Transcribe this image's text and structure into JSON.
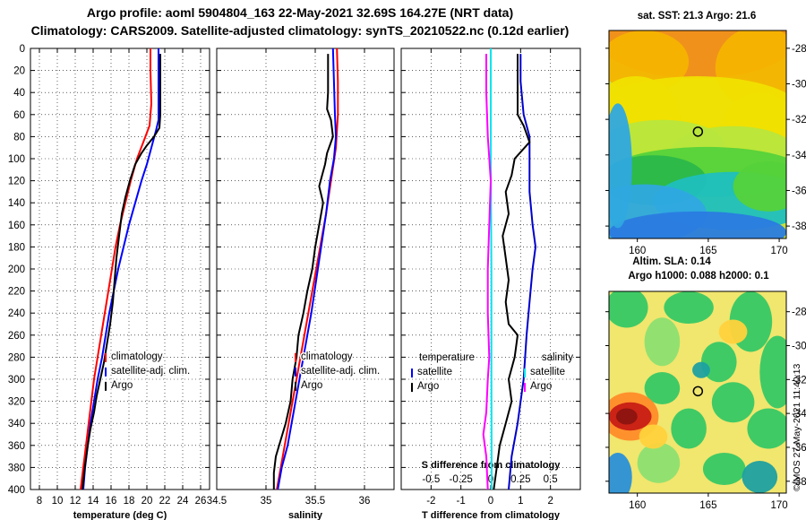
{
  "header": {
    "line1": "Argo profile: aoml 5904804_163 22-May-2021 32.69S 164.27E (NRT data)",
    "line2": "Climatology: CARS2009. Satellite-adjusted climatology: synTS_20210522.nc (0.12d earlier)"
  },
  "depth_ticks": [
    0,
    20,
    40,
    60,
    80,
    100,
    120,
    140,
    160,
    180,
    200,
    220,
    240,
    260,
    280,
    300,
    320,
    340,
    360,
    380,
    400
  ],
  "colors": {
    "climatology": "#ff0000",
    "satellite": "#0000ff",
    "argo": "#000000",
    "t_satellite": "#00e5ee",
    "s_satellite": "#0000cc",
    "s_argo": "#ff00ff"
  },
  "chart_data": [
    {
      "id": "temperature",
      "type": "line",
      "xlabel": "temperature (deg C)",
      "ylabel": "depth",
      "xlim": [
        7,
        27
      ],
      "ylim": [
        400,
        0
      ],
      "xticks": [
        8,
        10,
        12,
        14,
        16,
        18,
        20,
        22,
        24,
        26
      ],
      "legend": [
        "climatology",
        "satellite-adj. clim.",
        "Argo"
      ],
      "series": [
        {
          "name": "climatology",
          "color": "#ff0000",
          "points": [
            [
              20.4,
              0
            ],
            [
              20.4,
              20
            ],
            [
              20.5,
              50
            ],
            [
              20.3,
              70
            ],
            [
              19.6,
              85
            ],
            [
              18.9,
              100
            ],
            [
              18.2,
              120
            ],
            [
              17.6,
              140
            ],
            [
              17.0,
              160
            ],
            [
              16.5,
              180
            ],
            [
              16.1,
              200
            ],
            [
              15.7,
              220
            ],
            [
              15.3,
              240
            ],
            [
              14.9,
              260
            ],
            [
              14.5,
              280
            ],
            [
              14.1,
              300
            ],
            [
              13.8,
              320
            ],
            [
              13.5,
              340
            ],
            [
              13.2,
              360
            ],
            [
              12.9,
              380
            ],
            [
              12.6,
              400
            ]
          ]
        },
        {
          "name": "satellite-adj. clim.",
          "color": "#0000ff",
          "points": [
            [
              21.3,
              0
            ],
            [
              21.3,
              20
            ],
            [
              21.3,
              50
            ],
            [
              21.3,
              65
            ],
            [
              21.0,
              75
            ],
            [
              20.5,
              90
            ],
            [
              20.0,
              105
            ],
            [
              19.4,
              120
            ],
            [
              18.7,
              140
            ],
            [
              18.0,
              160
            ],
            [
              17.4,
              180
            ],
            [
              16.8,
              200
            ],
            [
              16.3,
              220
            ],
            [
              15.8,
              240
            ],
            [
              15.4,
              260
            ],
            [
              15.0,
              280
            ],
            [
              14.5,
              300
            ],
            [
              14.1,
              320
            ],
            [
              13.7,
              340
            ],
            [
              13.4,
              360
            ],
            [
              13.1,
              380
            ],
            [
              12.9,
              400
            ]
          ]
        },
        {
          "name": "Argo",
          "color": "#000000",
          "points": [
            [
              21.5,
              5
            ],
            [
              21.5,
              30
            ],
            [
              21.5,
              60
            ],
            [
              21.4,
              72
            ],
            [
              20.8,
              80
            ],
            [
              20.0,
              88
            ],
            [
              19.4,
              95
            ],
            [
              18.7,
              105
            ],
            [
              18.1,
              120
            ],
            [
              17.6,
              135
            ],
            [
              17.2,
              150
            ],
            [
              16.9,
              170
            ],
            [
              16.6,
              190
            ],
            [
              16.4,
              210
            ],
            [
              16.2,
              230
            ],
            [
              15.9,
              250
            ],
            [
              15.6,
              265
            ],
            [
              15.2,
              285
            ],
            [
              14.8,
              300
            ],
            [
              14.4,
              315
            ],
            [
              14.1,
              330
            ],
            [
              13.7,
              345
            ],
            [
              13.4,
              360
            ],
            [
              13.1,
              378
            ],
            [
              12.8,
              400
            ]
          ]
        }
      ]
    },
    {
      "id": "salinity",
      "type": "line",
      "xlabel": "salinity",
      "ylabel": "depth",
      "xlim": [
        34.5,
        36.3
      ],
      "ylim": [
        400,
        0
      ],
      "xticks": [
        34.5,
        35,
        35.5,
        36
      ],
      "xticklabels": [
        "34.5",
        "35",
        "35.5",
        "36"
      ],
      "legend": [
        "climatology",
        "satellite-adj. clim.",
        "Argo"
      ],
      "series": [
        {
          "name": "climatology",
          "color": "#ff0000",
          "points": [
            [
              35.72,
              0
            ],
            [
              35.73,
              30
            ],
            [
              35.73,
              60
            ],
            [
              35.71,
              90
            ],
            [
              35.66,
              120
            ],
            [
              35.61,
              150
            ],
            [
              35.55,
              180
            ],
            [
              35.49,
              210
            ],
            [
              35.43,
              240
            ],
            [
              35.37,
              270
            ],
            [
              35.31,
              300
            ],
            [
              35.25,
              330
            ],
            [
              35.19,
              360
            ],
            [
              35.15,
              380
            ],
            [
              35.11,
              400
            ]
          ]
        },
        {
          "name": "satellite-adj. clim.",
          "color": "#0000ff",
          "points": [
            [
              35.68,
              0
            ],
            [
              35.69,
              30
            ],
            [
              35.7,
              60
            ],
            [
              35.71,
              80
            ],
            [
              35.69,
              100
            ],
            [
              35.65,
              120
            ],
            [
              35.61,
              150
            ],
            [
              35.56,
              180
            ],
            [
              35.51,
              210
            ],
            [
              35.46,
              240
            ],
            [
              35.4,
              270
            ],
            [
              35.34,
              300
            ],
            [
              35.28,
              330
            ],
            [
              35.22,
              360
            ],
            [
              35.16,
              380
            ],
            [
              35.12,
              400
            ]
          ]
        },
        {
          "name": "Argo",
          "color": "#000000",
          "points": [
            [
              35.63,
              5
            ],
            [
              35.63,
              40
            ],
            [
              35.62,
              55
            ],
            [
              35.66,
              65
            ],
            [
              35.68,
              80
            ],
            [
              35.62,
              95
            ],
            [
              35.6,
              105
            ],
            [
              35.57,
              115
            ],
            [
              35.54,
              125
            ],
            [
              35.58,
              140
            ],
            [
              35.54,
              160
            ],
            [
              35.5,
              180
            ],
            [
              35.47,
              200
            ],
            [
              35.42,
              220
            ],
            [
              35.38,
              240
            ],
            [
              35.33,
              260
            ],
            [
              35.31,
              280
            ],
            [
              35.27,
              300
            ],
            [
              35.25,
              320
            ],
            [
              35.2,
              340
            ],
            [
              35.15,
              355
            ],
            [
              35.1,
              370
            ],
            [
              35.08,
              385
            ],
            [
              35.08,
              400
            ]
          ]
        }
      ]
    },
    {
      "id": "difference",
      "type": "line",
      "xlabel": "T difference from climatology",
      "xlabel_top": "S difference from climatology",
      "ylabel": "depth",
      "xlim": [
        -3,
        3
      ],
      "ylim": [
        400,
        0
      ],
      "xticks": [
        -2,
        -1,
        0,
        1,
        2
      ],
      "sticks": [
        -0.5,
        -0.25,
        0,
        0.25,
        0.5
      ],
      "sticklabels": [
        "-0.5",
        "-0.25",
        "0",
        "0.25",
        "0.5"
      ],
      "legend_temperature": {
        "title": "temperature",
        "items": [
          "satellite",
          "Argo"
        ]
      },
      "legend_salinity": {
        "title": "salinity",
        "items": [
          "satellite",
          "Argo"
        ]
      },
      "series": [
        {
          "name": "T satellite",
          "color": "#00e5ee",
          "points": [
            [
              0.0,
              0
            ],
            [
              0.0,
              100
            ],
            [
              0.02,
              200
            ],
            [
              0.02,
              300
            ],
            [
              0.03,
              400
            ]
          ]
        },
        {
          "name": "T Argo",
          "color": "#ff00ff",
          "points": [
            [
              -0.15,
              5
            ],
            [
              -0.15,
              40
            ],
            [
              -0.1,
              80
            ],
            [
              0.0,
              120
            ],
            [
              -0.05,
              160
            ],
            [
              -0.1,
              200
            ],
            [
              -0.1,
              240
            ],
            [
              -0.05,
              280
            ],
            [
              -0.1,
              300
            ],
            [
              -0.15,
              330
            ],
            [
              -0.25,
              350
            ],
            [
              -0.15,
              370
            ],
            [
              -0.1,
              400
            ]
          ]
        },
        {
          "name": "S satellite",
          "color": "#0000cc",
          "points": [
            [
              1.0,
              5
            ],
            [
              1.0,
              30
            ],
            [
              1.1,
              60
            ],
            [
              1.3,
              80
            ],
            [
              1.3,
              100
            ],
            [
              1.3,
              130
            ],
            [
              1.4,
              160
            ],
            [
              1.5,
              180
            ],
            [
              1.4,
              200
            ],
            [
              1.3,
              230
            ],
            [
              1.2,
              260
            ],
            [
              1.1,
              300
            ],
            [
              0.9,
              340
            ],
            [
              0.7,
              370
            ],
            [
              0.6,
              400
            ]
          ]
        },
        {
          "name": "S Argo",
          "color": "#000000",
          "points": [
            [
              0.9,
              5
            ],
            [
              0.9,
              60
            ],
            [
              1.1,
              70
            ],
            [
              1.3,
              85
            ],
            [
              0.8,
              100
            ],
            [
              0.7,
              115
            ],
            [
              0.5,
              130
            ],
            [
              0.6,
              150
            ],
            [
              0.4,
              170
            ],
            [
              0.5,
              190
            ],
            [
              0.6,
              210
            ],
            [
              0.5,
              230
            ],
            [
              0.6,
              250
            ],
            [
              0.9,
              260
            ],
            [
              0.8,
              280
            ],
            [
              0.6,
              300
            ],
            [
              0.7,
              320
            ],
            [
              0.5,
              340
            ],
            [
              0.3,
              360
            ],
            [
              0.2,
              380
            ],
            [
              0.1,
              400
            ]
          ]
        }
      ]
    }
  ],
  "maps": [
    {
      "id": "sst",
      "title": "sat.  SST: 21.3 Argo: 21.6",
      "lon_ticks": [
        160,
        165,
        170
      ],
      "lat_ticks": [
        -28,
        -30,
        -32,
        -34,
        -36,
        -38
      ],
      "lon_range": [
        158,
        170.5
      ],
      "lat_range": [
        -27,
        -38.7
      ],
      "float_lon": 164.27,
      "float_lat": -32.69
    },
    {
      "id": "sla",
      "title_line1": "Altim. SLA: 0.14",
      "title_line2": "Argo h1000: 0.088 h2000: 0.1",
      "lon_ticks": [
        160,
        165,
        170
      ],
      "lat_ticks": [
        -28,
        -30,
        -32,
        -34,
        -36,
        -38
      ],
      "lon_range": [
        158,
        170.5
      ],
      "lat_range": [
        -26.8,
        -38.7
      ],
      "float_lon": 164.27,
      "float_lat": -32.69
    }
  ],
  "footer": {
    "stamp": "©IMOS 27-May-2021 11:40:13"
  }
}
